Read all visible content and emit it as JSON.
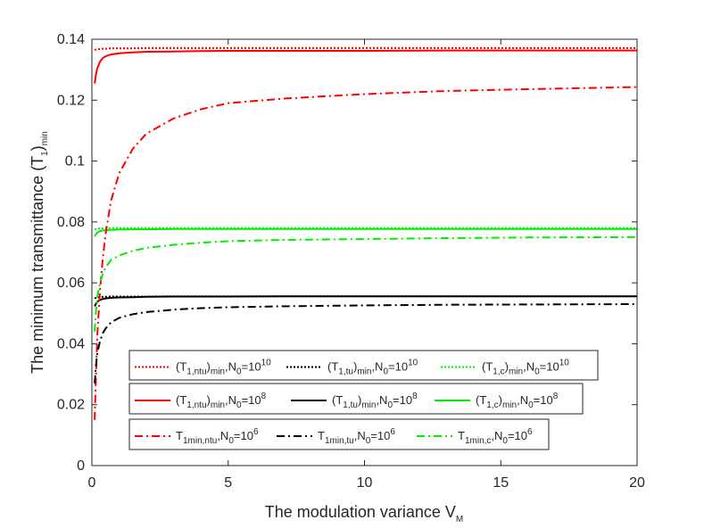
{
  "chart_data": {
    "type": "line",
    "title": "",
    "xlabel": {
      "main": "The modulation variance V",
      "sub": "M"
    },
    "ylabel": {
      "main": "The minimum transmittance (T",
      "sub1": "1",
      "mid": ")",
      "sub2": "min"
    },
    "xlim": [
      0,
      20
    ],
    "ylim": [
      0,
      0.14
    ],
    "xticks": [
      "0",
      "5",
      "10",
      "15",
      "20"
    ],
    "yticks": [
      "0",
      "0.02",
      "0.04",
      "0.06",
      "0.08",
      "0.1",
      "0.12",
      "0.14"
    ],
    "curve_x": [
      0.1,
      0.15,
      0.2,
      0.3,
      0.4,
      0.5,
      0.7,
      1,
      1.5,
      2,
      3,
      4,
      5,
      7,
      10,
      13,
      16,
      20
    ],
    "series": [
      {
        "name": "T1ntu_N1e10",
        "color": "#ff0000",
        "style": "dotted",
        "values": [
          0.1365,
          0.1366,
          0.1367,
          0.1368,
          0.1369,
          0.1369,
          0.137,
          0.137,
          0.137,
          0.1371,
          0.1371,
          0.1371,
          0.1371,
          0.1371,
          0.1371,
          0.1371,
          0.1371,
          0.1371
        ]
      },
      {
        "name": "T1tu_N1e10",
        "color": "#000000",
        "style": "dotted",
        "values": [
          0.0549,
          0.0551,
          0.0552,
          0.0553,
          0.0554,
          0.0554,
          0.0555,
          0.0555,
          0.0555,
          0.0555,
          0.0556,
          0.0556,
          0.0556,
          0.0556,
          0.0556,
          0.0556,
          0.0556,
          0.0556
        ]
      },
      {
        "name": "T1c_N1e10",
        "color": "#00ee00",
        "style": "dotted",
        "values": [
          0.0775,
          0.0777,
          0.0778,
          0.0779,
          0.0779,
          0.078,
          0.078,
          0.078,
          0.078,
          0.078,
          0.078,
          0.078,
          0.078,
          0.078,
          0.078,
          0.078,
          0.078,
          0.078
        ]
      },
      {
        "name": "T1ntu_N1e8",
        "color": "#ff0000",
        "style": "solid",
        "values": [
          0.1255,
          0.1285,
          0.1305,
          0.1327,
          0.1338,
          0.1344,
          0.135,
          0.1354,
          0.1357,
          0.1359,
          0.136,
          0.1361,
          0.1362,
          0.1362,
          0.1362,
          0.1363,
          0.1363,
          0.1363
        ]
      },
      {
        "name": "T1tu_N1e8",
        "color": "#000000",
        "style": "solid",
        "values": [
          0.0523,
          0.0532,
          0.0538,
          0.0544,
          0.0547,
          0.0549,
          0.0551,
          0.0552,
          0.0553,
          0.0554,
          0.0555,
          0.0555,
          0.0555,
          0.0556,
          0.0556,
          0.0556,
          0.0556,
          0.0556
        ]
      },
      {
        "name": "T1c_N1e8",
        "color": "#00ee00",
        "style": "solid",
        "values": [
          0.0752,
          0.076,
          0.0765,
          0.077,
          0.0772,
          0.0773,
          0.0774,
          0.0775,
          0.0776,
          0.0776,
          0.0777,
          0.0777,
          0.0777,
          0.0777,
          0.0777,
          0.0777,
          0.0777,
          0.0777
        ]
      },
      {
        "name": "T1min_ntu_N1e6",
        "color": "#ff0000",
        "style": "dashdot",
        "values": [
          0.015,
          0.03,
          0.043,
          0.058,
          0.068,
          0.076,
          0.087,
          0.096,
          0.104,
          0.109,
          0.114,
          0.117,
          0.119,
          0.1205,
          0.122,
          0.123,
          0.1236,
          0.1243
        ]
      },
      {
        "name": "T1min_tu_N1e6",
        "color": "#000000",
        "style": "dashdot",
        "values": [
          0.027,
          0.033,
          0.037,
          0.041,
          0.0435,
          0.045,
          0.047,
          0.0485,
          0.0497,
          0.0504,
          0.0512,
          0.0517,
          0.052,
          0.0523,
          0.0526,
          0.0528,
          0.0529,
          0.053
        ]
      },
      {
        "name": "T1min_c_N1e6",
        "color": "#00ee00",
        "style": "dashdot",
        "values": [
          0.044,
          0.051,
          0.0555,
          0.06,
          0.063,
          0.065,
          0.0675,
          0.069,
          0.0705,
          0.0715,
          0.0725,
          0.0732,
          0.0737,
          0.0741,
          0.0744,
          0.0747,
          0.0749,
          0.075
        ]
      }
    ],
    "legend": {
      "placement": "lower-center",
      "rows": [
        [
          {
            "base": "(T",
            "sub": "1,ntu",
            "mid": ")",
            "sub2": "min",
            "nlabel": ",N",
            "nsub": "0",
            "eq": "=10",
            "sup": "10",
            "color": "#ff0000",
            "style": "dotted"
          },
          {
            "base": "(T",
            "sub": "1,tu",
            "mid": ")",
            "sub2": "min",
            "nlabel": ",N",
            "nsub": "0",
            "eq": "=10",
            "sup": "10",
            "color": "#000000",
            "style": "dotted"
          },
          {
            "base": "(T",
            "sub": "1,c",
            "mid": ")",
            "sub2": "min",
            "nlabel": ",N",
            "nsub": "0",
            "eq": "=10",
            "sup": "10",
            "color": "#00ee00",
            "style": "dotted"
          }
        ],
        [
          {
            "base": "(T",
            "sub": "1,ntu",
            "mid": ")",
            "sub2": "min",
            "nlabel": ",N",
            "nsub": "0",
            "eq": "=10",
            "sup": "8",
            "color": "#ff0000",
            "style": "solid"
          },
          {
            "base": "(T",
            "sub": "1,tu",
            "mid": ")",
            "sub2": "min",
            "nlabel": ",N",
            "nsub": "0",
            "eq": "=10",
            "sup": "8",
            "color": "#000000",
            "style": "solid"
          },
          {
            "base": "(T",
            "sub": "1,c",
            "mid": ")",
            "sub2": "min",
            "nlabel": ",N",
            "nsub": "0",
            "eq": "=10",
            "sup": "8",
            "color": "#00ee00",
            "style": "solid"
          }
        ],
        [
          {
            "base": "T",
            "sub": "1min,ntu",
            "mid": "",
            "sub2": "",
            "nlabel": ",N",
            "nsub": "0",
            "eq": "=10",
            "sup": "6",
            "color": "#ff0000",
            "style": "dashdot"
          },
          {
            "base": "T",
            "sub": "1min,tu",
            "mid": "",
            "sub2": "",
            "nlabel": ",N",
            "nsub": "0",
            "eq": "=10",
            "sup": "6",
            "color": "#000000",
            "style": "dashdot"
          },
          {
            "base": "T",
            "sub": "1min,c",
            "mid": "",
            "sub2": "",
            "nlabel": ",N",
            "nsub": "0",
            "eq": "=10",
            "sup": "6",
            "color": "#00ee00",
            "style": "dashdot"
          }
        ]
      ]
    }
  }
}
